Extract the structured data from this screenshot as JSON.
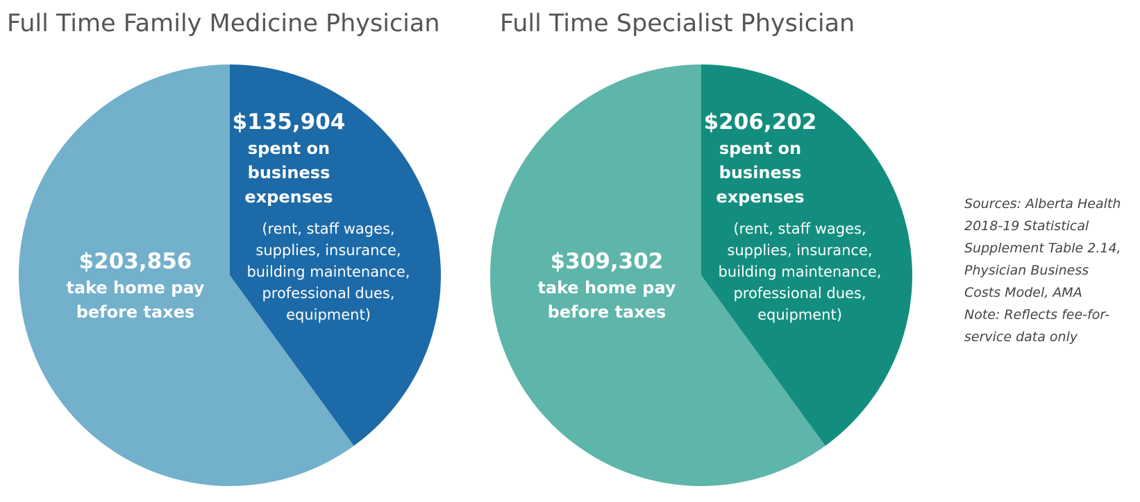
{
  "chart_data": [
    {
      "type": "pie",
      "title": "Full Time Family Medicine Physician",
      "colors": [
        "#1d6aa8",
        "#72b0cb"
      ],
      "slices": [
        {
          "value": 135904,
          "label": "$135,904",
          "text": [
            "spent on",
            "business",
            "expenses"
          ],
          "detail": [
            "(rent, staff wages,",
            "supplies, insurance,",
            "building maintenance,",
            "professional dues,",
            "equipment)"
          ]
        },
        {
          "value": 203856,
          "label": "$203,856",
          "text": [
            "take home pay",
            "before taxes"
          ]
        }
      ]
    },
    {
      "type": "pie",
      "title": "Full Time Specialist Physician",
      "colors": [
        "#138e7e",
        "#5eb5aa"
      ],
      "slices": [
        {
          "value": 206202,
          "label": "$206,202",
          "text": [
            "spent on",
            "business",
            "expenses"
          ],
          "detail": [
            "(rent, staff wages,",
            "supplies, insurance,",
            "building maintenance,",
            "professional dues,",
            "equipment)"
          ]
        },
        {
          "value": 309302,
          "label": "$309,302",
          "text": [
            "take home pay",
            "before taxes"
          ]
        }
      ]
    }
  ],
  "sources": {
    "lines": [
      "Sources: Alberta Health",
      "2018-19 Statistical",
      "Supplement Table 2.14,",
      "Physician Business",
      "Costs Model, AMA",
      "Note: Reflects fee-for-",
      "service data only"
    ]
  }
}
